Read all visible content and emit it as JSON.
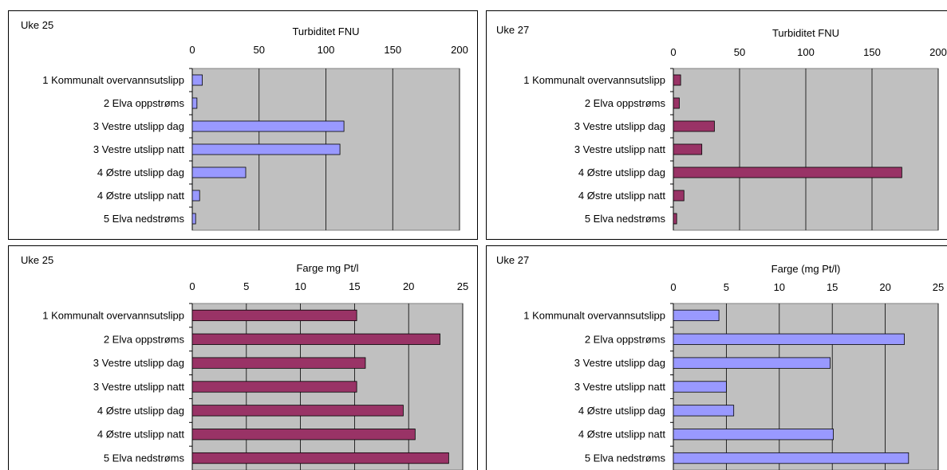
{
  "categories": [
    "1 Kommunalt overvannsutslipp",
    "2 Elva oppstrøms",
    "3 Vestre utslipp dag",
    "3 Vestre utslipp natt",
    "4 Østre utslipp dag",
    "4 Østre utslipp natt",
    "5 Elva nedstrøms"
  ],
  "colors": {
    "plot_bg": "#c0c0c0",
    "blue": "#9999ff",
    "maroon": "#993366",
    "frame": "#000000"
  },
  "chart_data": [
    {
      "type": "bar",
      "panel": "Uke 25",
      "title": "Turbiditet FNU",
      "categories": [
        "1 Kommunalt overvannsutslipp",
        "2 Elva oppstrøms",
        "3 Vestre utslipp dag",
        "3 Vestre utslipp natt",
        "4 Østre utslipp dag",
        "4 Østre utslipp natt",
        "5 Elva nedstrøms"
      ],
      "values": [
        7.5,
        3.5,
        113.5,
        110.5,
        40,
        5.5,
        2.5
      ],
      "xlim": [
        0,
        200
      ],
      "ticks": [
        "0",
        "50",
        "100",
        "150",
        "200"
      ],
      "color": "blue",
      "orientation": "horizontal",
      "grid": true
    },
    {
      "type": "bar",
      "panel": "Uke 27",
      "title": "Turbiditet FNU",
      "categories": [
        "1 Kommunalt overvannsutslipp",
        "2 Elva oppstrøms",
        "3 Vestre utslipp dag",
        "3 Vestre utslipp natt",
        "4 Østre utslipp dag",
        "4 Østre utslipp natt",
        "5 Elva nedstrøms"
      ],
      "values": [
        5.5,
        4.5,
        31,
        21.5,
        172.5,
        8,
        2.5
      ],
      "xlim": [
        0,
        200
      ],
      "ticks": [
        "0",
        "50",
        "100",
        "150",
        "200"
      ],
      "color": "maroon",
      "orientation": "horizontal",
      "grid": true
    },
    {
      "type": "bar",
      "panel": "Uke 25",
      "title": "Farge mg Pt/l",
      "categories": [
        "1 Kommunalt overvannsutslipp",
        "2 Elva oppstrøms",
        "3 Vestre utslipp dag",
        "3 Vestre utslipp natt",
        "4 Østre utslipp dag",
        "4 Østre utslipp natt",
        "5 Elva nedstrøms"
      ],
      "values": [
        15.2,
        22.9,
        16,
        15.2,
        19.5,
        20.6,
        23.7
      ],
      "xlim": [
        0,
        25
      ],
      "ticks": [
        "0",
        "5",
        "10",
        "15",
        "20",
        "25"
      ],
      "color": "maroon",
      "orientation": "horizontal",
      "grid": true
    },
    {
      "type": "bar",
      "panel": "Uke 27",
      "title": "Farge (mg Pt/l)",
      "categories": [
        "1 Kommunalt overvannsutslipp",
        "2 Elva oppstrøms",
        "3 Vestre utslipp dag",
        "3 Vestre utslipp natt",
        "4 Østre utslipp dag",
        "4 Østre utslipp natt",
        "5 Elva nedstrøms"
      ],
      "values": [
        4.3,
        21.8,
        14.8,
        5,
        5.7,
        15.1,
        22.2
      ],
      "xlim": [
        0,
        25
      ],
      "ticks": [
        "0",
        "5",
        "10",
        "15",
        "20",
        "25"
      ],
      "color": "blue",
      "orientation": "horizontal",
      "grid": true
    }
  ]
}
